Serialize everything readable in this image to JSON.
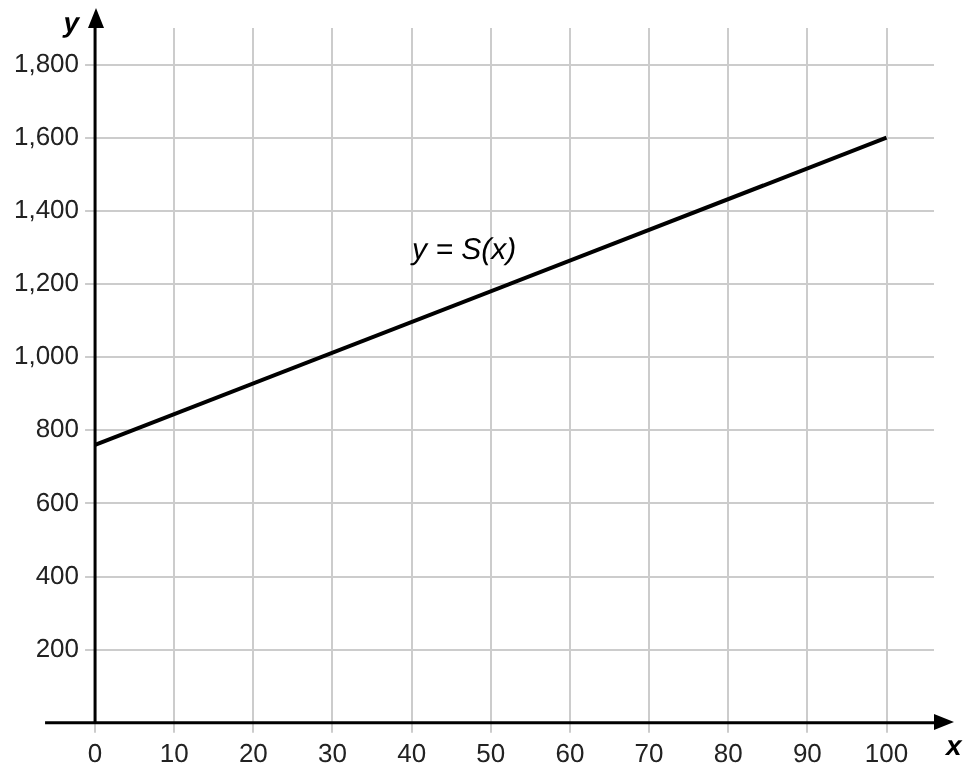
{
  "chart_data": {
    "type": "line",
    "xlabel": "x",
    "ylabel": "y",
    "x": [
      0,
      100
    ],
    "series": [
      {
        "color": "#000000",
        "values": [
          760,
          1600
        ]
      }
    ],
    "xlim": [
      0,
      106
    ],
    "ylim": [
      0,
      1900
    ],
    "xticks": [
      {
        "value": 0,
        "label": "0"
      },
      10,
      20,
      30,
      40,
      50,
      60,
      70,
      80,
      90,
      100
    ],
    "yticks": [
      {
        "value": 200,
        "label": "200"
      },
      {
        "value": 400,
        "label": "400"
      },
      {
        "value": 600,
        "label": "600"
      },
      {
        "value": 800,
        "label": "800"
      },
      {
        "value": 1000,
        "label": "1,000"
      },
      {
        "value": 1200,
        "label": "1,200"
      },
      {
        "value": 1400,
        "label": "1,400"
      },
      {
        "value": 1600,
        "label": "1,600"
      },
      {
        "value": 1800,
        "label": "1,800"
      }
    ],
    "annotations": [
      "y = S(x)"
    ],
    "grid": true,
    "legend": false,
    "marker": "none",
    "line_style": "solid"
  }
}
